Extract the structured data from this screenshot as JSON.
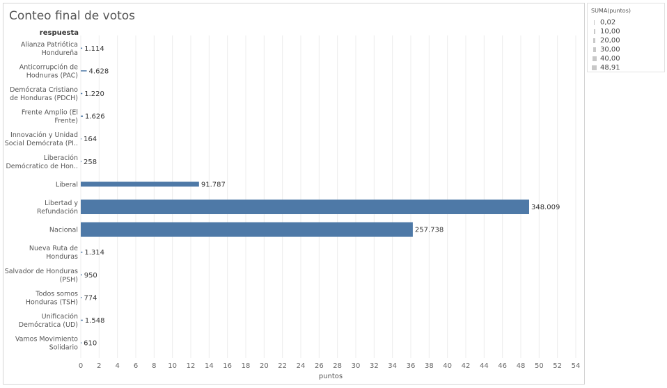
{
  "legend": {
    "title": "SUMA(puntos)",
    "items": [
      "0,02",
      "10,00",
      "20,00",
      "30,00",
      "40,00",
      "48,91"
    ]
  },
  "colors": {
    "bar": "#4e79a7",
    "grid": "#ececec",
    "text": "#555555"
  },
  "chart_data": {
    "type": "bar",
    "orientation": "horizontal",
    "title": "Conteo final de votos",
    "ylabel": "respuesta",
    "xlabel": "puntos",
    "xlim": [
      0,
      54
    ],
    "grid": true,
    "legend_position": "right",
    "x_ticks": [
      "0",
      "2",
      "4",
      "6",
      "8",
      "10",
      "12",
      "14",
      "16",
      "18",
      "20",
      "22",
      "24",
      "26",
      "28",
      "30",
      "32",
      "34",
      "36",
      "38",
      "40",
      "42",
      "44",
      "46",
      "48",
      "50",
      "52",
      "54"
    ],
    "categories": [
      [
        "Alianza Patriótica",
        "Hondureña"
      ],
      [
        "Anticorrupción de",
        "Hodnuras (PAC)"
      ],
      [
        "Demócrata Cristiano",
        "de Honduras (PDCH)"
      ],
      [
        "Frente Amplio (El",
        "Frente)"
      ],
      [
        "Innovación y Unidad",
        "Social Demócrata (PI.."
      ],
      [
        "Liberación",
        "Demócratico de Hon.."
      ],
      [
        "Liberal"
      ],
      [
        "Libertad y",
        "Refundación"
      ],
      [
        "Nacional"
      ],
      [
        "Nueva Ruta de",
        "Honduras"
      ],
      [
        "Salvador de Honduras",
        "(PSH)"
      ],
      [
        "Todos somos",
        "Honduras (TSH)"
      ],
      [
        "Unificación",
        "Demócratica (UD)"
      ],
      [
        "Vamos Movimiento",
        "Solidario"
      ]
    ],
    "values": [
      0.16,
      0.65,
      0.17,
      0.23,
      0.02,
      0.04,
      12.9,
      48.91,
      36.22,
      0.18,
      0.13,
      0.11,
      0.22,
      0.09
    ],
    "data_labels": [
      "1.114",
      "4.628",
      "1.220",
      "1.626",
      "164",
      "258",
      "91.787",
      "348.009",
      "257.738",
      "1.314",
      "950",
      "774",
      "1.548",
      "610"
    ]
  }
}
